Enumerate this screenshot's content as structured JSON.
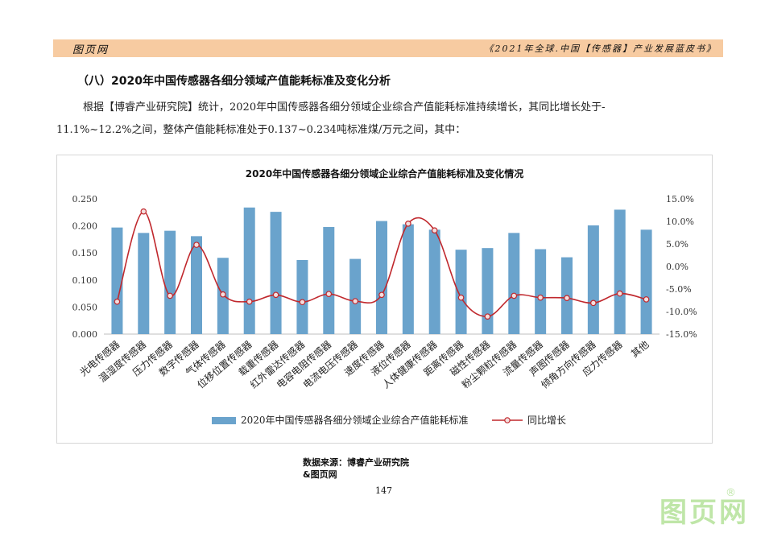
{
  "header": {
    "left_text": "图页网",
    "right_text": "《2021年全球.中国【传感器】产业发展蓝皮书》"
  },
  "section": {
    "title": "（八）2020年中国传感器各细分领域产值能耗标准及变化分析",
    "paragraph_line1": "根据【博睿产业研究院】统计，2020年中国传感器各细分领域企业综合产值能耗标准持续增长，其同比增长处于-",
    "paragraph_line2": "11.1%~12.2%之间，整体产值能耗标准处于0.137~0.234吨标准煤/万元之间，其中："
  },
  "colors": {
    "header_band": "#f7cba1",
    "bar": "#6aa3cc",
    "line": "#c0282d",
    "marker_fill": "#f4dede",
    "watermark": "#bfe6a8"
  },
  "chart_data": {
    "type": "bar",
    "title": "2020年中国传感器各细分领域企业综合产值能耗标准及变化情况",
    "categories": [
      "光电传感器",
      "温湿度传感器",
      "压力传感器",
      "数字传感器",
      "气体传感器",
      "位移位置传感器",
      "载重传感器",
      "红外雷达传感器",
      "电容电阻传感器",
      "电流电压传感器",
      "速度传感器",
      "液位传感器",
      "人体健康传感器",
      "距离传感器",
      "磁性传感器",
      "粉尘颗粒传感器",
      "流量传感器",
      "声图传感器",
      "倾角方向传感器",
      "应力传感器",
      "其他"
    ],
    "series": [
      {
        "name": "2020年中国传感器各细分领域企业综合产值能耗标准",
        "type": "bar",
        "axis": "left",
        "values": [
          0.197,
          0.187,
          0.191,
          0.181,
          0.141,
          0.234,
          0.226,
          0.137,
          0.198,
          0.139,
          0.209,
          0.203,
          0.193,
          0.156,
          0.159,
          0.187,
          0.157,
          0.142,
          0.201,
          0.23,
          0.193
        ]
      },
      {
        "name": "同比增长",
        "type": "line",
        "axis": "right",
        "values": [
          -7.8,
          12.2,
          -6.5,
          4.8,
          -6.2,
          -7.8,
          -6.3,
          -7.9,
          -6.1,
          -7.7,
          -6.3,
          9.5,
          8.0,
          -6.9,
          -11.1,
          -6.5,
          -6.9,
          -7.0,
          -8.1,
          -6.0,
          -7.3
        ]
      }
    ],
    "y_left": {
      "ticks": [
        "0.000",
        "0.050",
        "0.100",
        "0.150",
        "0.200",
        "0.250"
      ],
      "min": 0,
      "max": 0.25
    },
    "y_right": {
      "ticks": [
        "-15.0%",
        "-10.0%",
        "-5.0%",
        "0.0%",
        "5.0%",
        "10.0%",
        "15.0%"
      ],
      "min": -15,
      "max": 15
    },
    "legend_position": "bottom",
    "grid": false
  },
  "source": {
    "line1": "数据来源：博睿产业研究院",
    "line2": "&图页网"
  },
  "page_number": "147",
  "watermark": {
    "text": "图页网",
    "reg": "®"
  }
}
